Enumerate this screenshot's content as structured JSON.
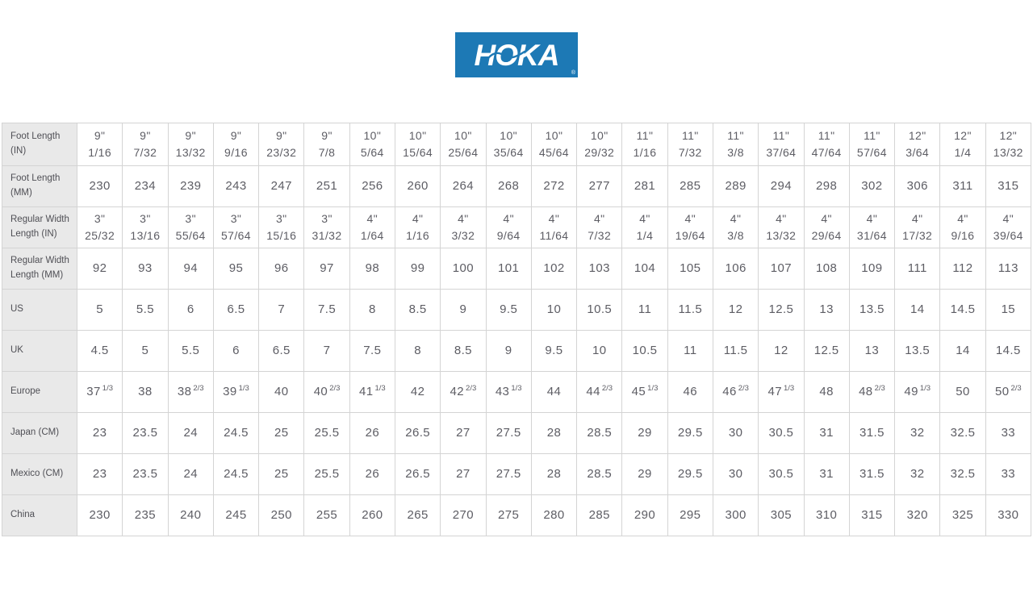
{
  "page": {
    "background": "#ffffff"
  },
  "logo": {
    "brand": "HOKA",
    "registered": "®",
    "background": "#1d79b5",
    "text_color": "#ffffff"
  },
  "table": {
    "header_bg": "#e9e9e9",
    "border_color": "#d4d4d4",
    "value_color": "#5d5d64",
    "label_color": "#4f4f55",
    "rows": [
      {
        "label": "Foot Length\n(IN)",
        "style": "twoline",
        "values": [
          "9\"\n1/16",
          "9\"\n7/32",
          "9\"\n13/32",
          "9\"\n9/16",
          "9\"\n23/32",
          "9\"\n7/8",
          "10\"\n5/64",
          "10\"\n15/64",
          "10\"\n25/64",
          "10\"\n35/64",
          "10\"\n45/64",
          "10\"\n29/32",
          "11\"\n1/16",
          "11\"\n7/32",
          "11\"\n3/8",
          "11\"\n37/64",
          "11\"\n47/64",
          "11\"\n57/64",
          "12\"\n3/64",
          "12\"\n1/4",
          "12\"\n13/32"
        ]
      },
      {
        "label": "Foot Length\n(MM)",
        "style": "plain",
        "values": [
          "230",
          "234",
          "239",
          "243",
          "247",
          "251",
          "256",
          "260",
          "264",
          "268",
          "272",
          "277",
          "281",
          "285",
          "289",
          "294",
          "298",
          "302",
          "306",
          "311",
          "315"
        ]
      },
      {
        "label": "Regular Width\nLength (IN)",
        "style": "twoline",
        "values": [
          "3\"\n25/32",
          "3\"\n13/16",
          "3\"\n55/64",
          "3\"\n57/64",
          "3\"\n15/16",
          "3\"\n31/32",
          "4\"\n1/64",
          "4\"\n1/16",
          "4\"\n3/32",
          "4\"\n9/64",
          "4\"\n11/64",
          "4\"\n7/32",
          "4\"\n1/4",
          "4\"\n19/64",
          "4\"\n3/8",
          "4\"\n13/32",
          "4\"\n29/64",
          "4\"\n31/64",
          "4\"\n17/32",
          "4\"\n9/16",
          "4\"\n39/64"
        ]
      },
      {
        "label": "Regular Width\nLength (MM)",
        "style": "plain",
        "values": [
          "92",
          "93",
          "94",
          "95",
          "96",
          "97",
          "98",
          "99",
          "100",
          "101",
          "102",
          "103",
          "104",
          "105",
          "106",
          "107",
          "108",
          "109",
          "111",
          "112",
          "113"
        ]
      },
      {
        "label": "US",
        "style": "plain",
        "values": [
          "5",
          "5.5",
          "6",
          "6.5",
          "7",
          "7.5",
          "8",
          "8.5",
          "9",
          "9.5",
          "10",
          "10.5",
          "11",
          "11.5",
          "12",
          "12.5",
          "13",
          "13.5",
          "14",
          "14.5",
          "15"
        ]
      },
      {
        "label": "UK",
        "style": "plain",
        "values": [
          "4.5",
          "5",
          "5.5",
          "6",
          "6.5",
          "7",
          "7.5",
          "8",
          "8.5",
          "9",
          "9.5",
          "10",
          "10.5",
          "11",
          "11.5",
          "12",
          "12.5",
          "13",
          "13.5",
          "14",
          "14.5"
        ]
      },
      {
        "label": "Europe",
        "style": "supfrac",
        "values": [
          "37 1/3",
          "38",
          "38 2/3",
          "39 1/3",
          "40",
          "40 2/3",
          "41 1/3",
          "42",
          "42 2/3",
          "43 1/3",
          "44",
          "44 2/3",
          "45 1/3",
          "46",
          "46 2/3",
          "47 1/3",
          "48",
          "48 2/3",
          "49 1/3",
          "50",
          "50 2/3"
        ]
      },
      {
        "label": "Japan (CM)",
        "style": "plain",
        "values": [
          "23",
          "23.5",
          "24",
          "24.5",
          "25",
          "25.5",
          "26",
          "26.5",
          "27",
          "27.5",
          "28",
          "28.5",
          "29",
          "29.5",
          "30",
          "30.5",
          "31",
          "31.5",
          "32",
          "32.5",
          "33"
        ]
      },
      {
        "label": "Mexico (CM)",
        "style": "plain",
        "values": [
          "23",
          "23.5",
          "24",
          "24.5",
          "25",
          "25.5",
          "26",
          "26.5",
          "27",
          "27.5",
          "28",
          "28.5",
          "29",
          "29.5",
          "30",
          "30.5",
          "31",
          "31.5",
          "32",
          "32.5",
          "33"
        ]
      },
      {
        "label": "China",
        "style": "plain",
        "values": [
          "230",
          "235",
          "240",
          "245",
          "250",
          "255",
          "260",
          "265",
          "270",
          "275",
          "280",
          "285",
          "290",
          "295",
          "300",
          "305",
          "310",
          "315",
          "320",
          "325",
          "330"
        ]
      }
    ]
  }
}
